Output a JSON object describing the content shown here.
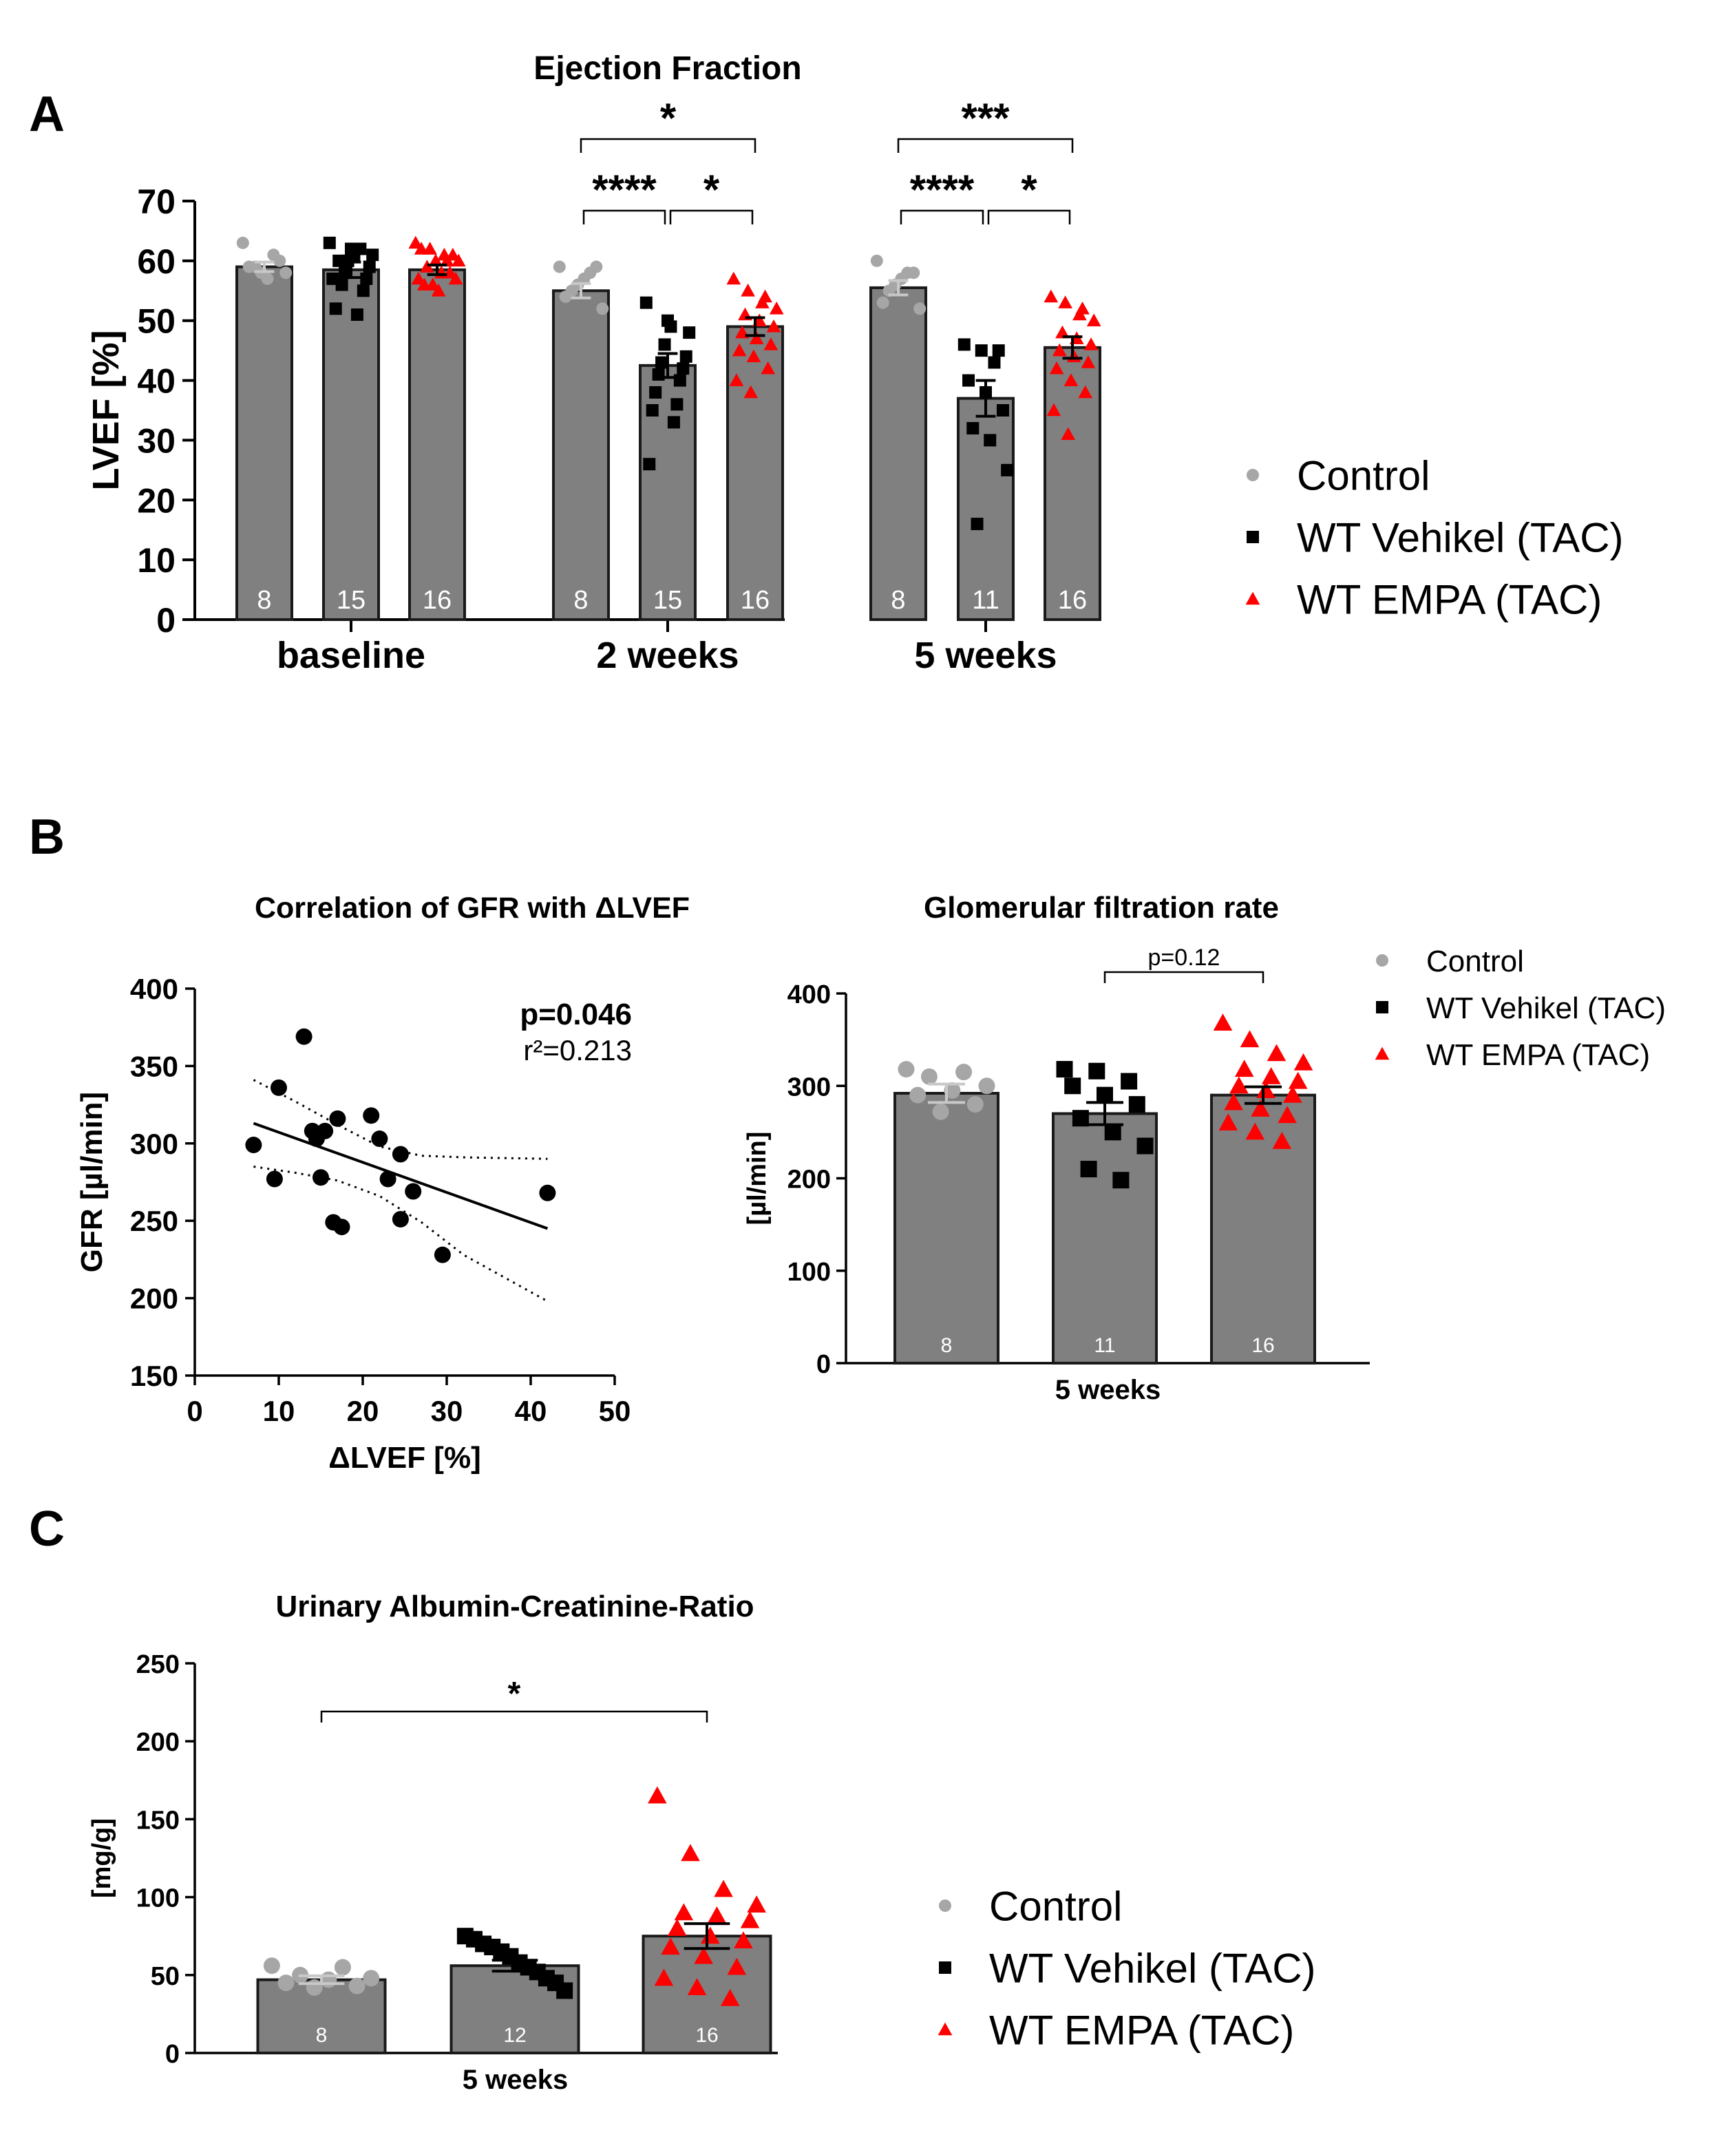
{
  "colors": {
    "bar_fill": "#808080",
    "bar_stroke": "#1a1a1a",
    "control": "#a6a6a6",
    "vehikel": "#000000",
    "empa": "#ff0000",
    "axis": "#000000"
  },
  "panels": [
    {
      "letter": "A"
    },
    {
      "letter": "B"
    },
    {
      "letter": "C"
    }
  ],
  "chart_data": [
    {
      "id": "ef",
      "type": "bar",
      "title": "Ejection Fraction",
      "ylabel": "LVEF [%]",
      "ylim": [
        0,
        70
      ],
      "yticks": [
        "0",
        "10",
        "20",
        "30",
        "40",
        "50",
        "60",
        "70"
      ],
      "categories": [
        "baseline",
        "2 weeks",
        "5 weeks"
      ],
      "series": [
        {
          "name": "Control",
          "marker": "circle",
          "means": [
            59,
            55,
            55.5
          ],
          "sem": [
            0.8,
            1.2,
            1.2
          ],
          "n": [
            "8",
            "8",
            "8"
          ],
          "points": [
            [
              63,
              61,
              59,
              58,
              57,
              59,
              60,
              58
            ],
            [
              59,
              58,
              55,
              52,
              57,
              54,
              59,
              56
            ],
            [
              60,
              58,
              55,
              52,
              57,
              53,
              58,
              56
            ]
          ]
        },
        {
          "name": "WT Vehikel (TAC)",
          "marker": "square",
          "means": [
            58.5,
            42.5,
            37
          ],
          "sem": [
            1.3,
            2.0,
            3.0
          ],
          "n": [
            "15",
            "15",
            "11"
          ],
          "points": [
            [
              63,
              62,
              61,
              60,
              59,
              58,
              57,
              56,
              55,
              60,
              62,
              52,
              51,
              57,
              61
            ],
            [
              53,
              50,
              48,
              46,
              44,
              43,
              42,
              41,
              40,
              38,
              36,
              35,
              33,
              26,
              49
            ],
            [
              46,
              45,
              45,
              40,
              38,
              35,
              32,
              30,
              25,
              16,
              43
            ]
          ]
        },
        {
          "name": "WT EMPA (TAC)",
          "marker": "triangle",
          "means": [
            58.5,
            49,
            45.5
          ],
          "sem": [
            0.8,
            1.5,
            1.8
          ],
          "n": [
            "16",
            "16",
            "16"
          ],
          "points": [
            [
              63,
              62,
              61,
              60,
              59,
              58,
              57,
              56,
              55,
              61,
              62,
              60,
              58,
              57,
              56,
              60
            ],
            [
              57,
              55,
              53,
              52,
              51,
              50,
              49,
              48,
              47,
              46,
              45,
              44,
              42,
              40,
              38,
              54
            ],
            [
              54,
              53,
              51,
              50,
              48,
              47,
              46,
              45,
              44,
              43,
              42,
              40,
              38,
              35,
              31,
              52
            ]
          ]
        }
      ],
      "significance": [
        {
          "group": 1,
          "from": 0,
          "to": 2,
          "label": "*"
        },
        {
          "group": 1,
          "from": 0,
          "to": 1,
          "label": "****"
        },
        {
          "group": 1,
          "from": 1,
          "to": 2,
          "label": "*"
        },
        {
          "group": 2,
          "from": 0,
          "to": 2,
          "label": "***"
        },
        {
          "group": 2,
          "from": 0,
          "to": 1,
          "label": "****"
        },
        {
          "group": 2,
          "from": 1,
          "to": 2,
          "label": "*"
        }
      ]
    },
    {
      "id": "corr",
      "type": "scatter",
      "title": "Correlation of GFR with ΔLVEF",
      "xlabel": "ΔLVEF [%]",
      "ylabel": "GFR [µl/min]",
      "xlim": [
        0,
        50
      ],
      "ylim": [
        150,
        400
      ],
      "xticks": [
        "0",
        "10",
        "20",
        "30",
        "40",
        "50"
      ],
      "yticks": [
        "150",
        "200",
        "250",
        "300",
        "350",
        "400"
      ],
      "annotation_p": "p=0.046",
      "annotation_r2": "r²=0.213",
      "points": [
        [
          7,
          299
        ],
        [
          9.5,
          277
        ],
        [
          10,
          336
        ],
        [
          13,
          369
        ],
        [
          14,
          308
        ],
        [
          14.5,
          303
        ],
        [
          15,
          278
        ],
        [
          15.5,
          308
        ],
        [
          16.5,
          249
        ],
        [
          17,
          316
        ],
        [
          17.5,
          246
        ],
        [
          21,
          318
        ],
        [
          22,
          303
        ],
        [
          23,
          277
        ],
        [
          24.5,
          293
        ],
        [
          24.5,
          251
        ],
        [
          26,
          269
        ],
        [
          29.5,
          228
        ],
        [
          42,
          268
        ]
      ],
      "regression": [
        [
          7,
          313
        ],
        [
          42,
          245
        ]
      ],
      "ci_upper": [
        [
          7,
          341
        ],
        [
          12,
          327
        ],
        [
          17,
          312
        ],
        [
          22,
          298
        ],
        [
          27,
          292
        ],
        [
          32,
          291
        ],
        [
          42,
          290
        ]
      ],
      "ci_lower": [
        [
          7,
          285
        ],
        [
          12,
          281
        ],
        [
          17,
          276
        ],
        [
          22,
          266
        ],
        [
          27,
          249
        ],
        [
          32,
          228
        ],
        [
          42,
          198
        ]
      ]
    },
    {
      "id": "gfr",
      "type": "bar",
      "title": "Glomerular filtration rate",
      "ylabel": "[µl/min]",
      "xlabel": "5 weeks",
      "ylim": [
        0,
        400
      ],
      "yticks": [
        "0",
        "100",
        "200",
        "300",
        "400"
      ],
      "series": [
        {
          "name": "Control",
          "marker": "circle",
          "mean": 292,
          "sem": 10,
          "n": "8",
          "points": [
            318,
            315,
            310,
            300,
            295,
            290,
            280,
            272
          ]
        },
        {
          "name": "WT Vehikel (TAC)",
          "marker": "square",
          "mean": 270,
          "sem": 12,
          "n": "11",
          "points": [
            318,
            316,
            305,
            300,
            290,
            280,
            265,
            250,
            235,
            210,
            198
          ]
        },
        {
          "name": "WT EMPA (TAC)",
          "marker": "triangle",
          "mean": 290,
          "sem": 9,
          "n": "16",
          "points": [
            368,
            350,
            335,
            325,
            318,
            310,
            305,
            300,
            295,
            290,
            282,
            275,
            268,
            260,
            250,
            240
          ]
        }
      ],
      "significance": [
        {
          "from": 1,
          "to": 2,
          "label": "p=0.12"
        }
      ]
    },
    {
      "id": "uacr",
      "type": "bar",
      "title": "Urinary Albumin-Creatinine-Ratio",
      "ylabel": "[mg/g]",
      "xlabel": "5 weeks",
      "ylim": [
        0,
        250
      ],
      "yticks": [
        "0",
        "50",
        "100",
        "150",
        "200",
        "250"
      ],
      "series": [
        {
          "name": "Control",
          "marker": "circle",
          "mean": 47,
          "sem": 2.5,
          "n": "8",
          "points": [
            56,
            55,
            50,
            48,
            47,
            45,
            43,
            42
          ]
        },
        {
          "name": "WT Vehikel (TAC)",
          "marker": "square",
          "mean": 56,
          "sem": 3.5,
          "n": "12",
          "points": [
            75,
            73,
            70,
            68,
            65,
            62,
            58,
            55,
            52,
            48,
            45,
            40
          ]
        },
        {
          "name": "WT EMPA (TAC)",
          "marker": "triangle",
          "mean": 75,
          "sem": 8,
          "n": "16",
          "points": [
            165,
            128,
            105,
            95,
            90,
            88,
            85,
            80,
            75,
            72,
            68,
            62,
            55,
            48,
            42,
            35
          ]
        }
      ],
      "significance": [
        {
          "from": 0,
          "to": 2,
          "label": "*"
        }
      ]
    }
  ],
  "legends": [
    {
      "id": "legend-a",
      "items": [
        {
          "label": "Control",
          "marker": "circle"
        },
        {
          "label": "WT Vehikel (TAC)",
          "marker": "square"
        },
        {
          "label": "WT EMPA (TAC)",
          "marker": "triangle"
        }
      ]
    },
    {
      "id": "legend-b",
      "items": [
        {
          "label": "Control",
          "marker": "circle"
        },
        {
          "label": "WT Vehikel (TAC)",
          "marker": "square"
        },
        {
          "label": "WT EMPA (TAC)",
          "marker": "triangle"
        }
      ]
    },
    {
      "id": "legend-c",
      "items": [
        {
          "label": "Control",
          "marker": "circle"
        },
        {
          "label": "WT Vehikel (TAC)",
          "marker": "square"
        },
        {
          "label": "WT EMPA (TAC)",
          "marker": "triangle"
        }
      ]
    }
  ]
}
